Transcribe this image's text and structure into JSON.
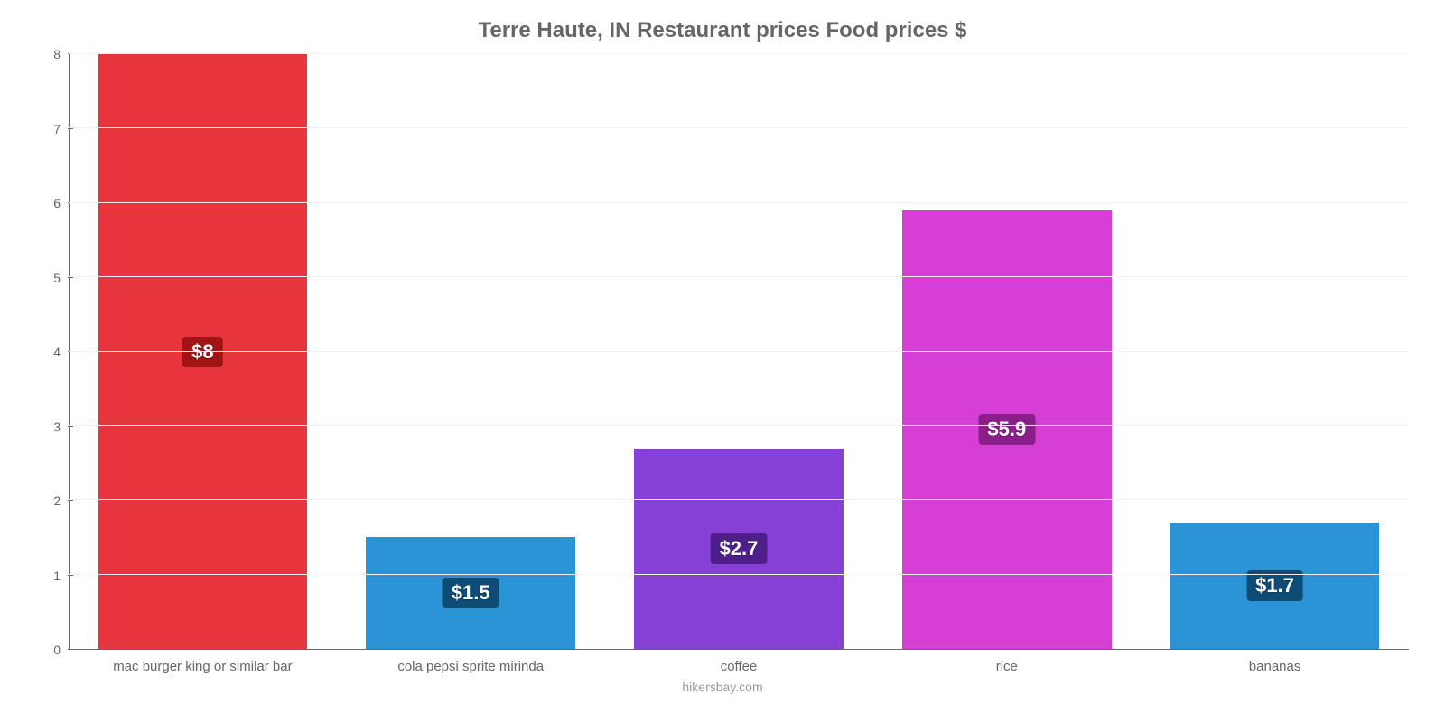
{
  "chart": {
    "type": "bar",
    "title": "Terre Haute, IN Restaurant prices Food prices $",
    "title_color": "#666666",
    "title_fontsize": 24,
    "attribution": "hikersbay.com",
    "attribution_color": "#999999",
    "attribution_fontsize": 14,
    "background_color": "#ffffff",
    "grid_color": "#f2f2f2",
    "axis_line_color": "#666666",
    "tick_label_color": "#666666",
    "tick_label_fontsize": 14,
    "x_label_color": "#666666",
    "x_label_fontsize": 15,
    "ylim": [
      0,
      8
    ],
    "ytick_step": 1,
    "yticks": [
      0,
      1,
      2,
      3,
      4,
      5,
      6,
      7,
      8
    ],
    "bar_width_percent": 78,
    "categories": [
      "mac burger king or similar bar",
      "cola pepsi sprite mirinda",
      "coffee",
      "rice",
      "bananas"
    ],
    "values": [
      8,
      1.5,
      2.7,
      5.9,
      1.7
    ],
    "value_labels": [
      "$8",
      "$1.5",
      "$2.7",
      "$5.9",
      "$1.7"
    ],
    "bar_colors": [
      "#e8343c",
      "#2a93d6",
      "#8640d6",
      "#d63ed6",
      "#2a93d6"
    ],
    "badge_colors": [
      "#a11414",
      "#0f4c75",
      "#4e1f8a",
      "#8a1f8a",
      "#0f4c75"
    ],
    "badge_text_color": "#ffffff",
    "badge_fontsize": 22,
    "badge_radius": 4
  }
}
